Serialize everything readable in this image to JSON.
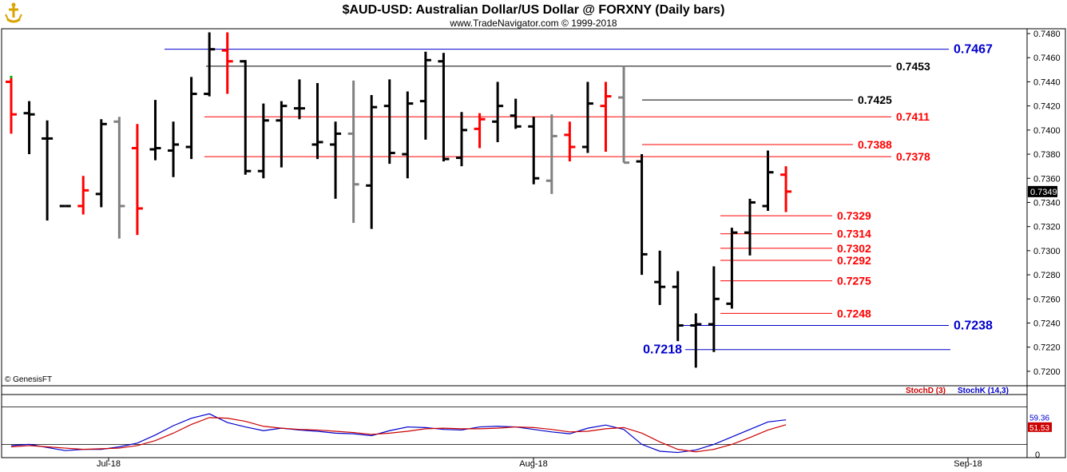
{
  "header": {
    "title": "$AUD-USD:  Australian Dollar/US Dollar @ FORXNY  (Daily bars)",
    "subtitle": "www.TradeNavigator.com © 1999-2018",
    "copyright": "© GenesisFT"
  },
  "chart_data": [
    {
      "type": "ohlc",
      "y_axis": {
        "ylim": [
          0.7188,
          0.7484
        ],
        "ticks": [
          0.72,
          0.722,
          0.724,
          0.726,
          0.728,
          0.73,
          0.732,
          0.734,
          0.736,
          0.738,
          0.74,
          0.742,
          0.744,
          0.746,
          0.748
        ],
        "tick_labels": [
          "0.7200",
          "0.7220",
          "0.7240",
          "0.7260",
          "0.7280",
          "0.7300",
          "0.7320",
          "0.7340",
          "0.7360",
          "0.7380",
          "0.7400",
          "0.7420",
          "0.7440",
          "0.7460",
          "0.7480"
        ],
        "position": "right",
        "last_price_label": "0.7349"
      },
      "x_axis": {
        "ticks": [
          {
            "i": 5.5,
            "label": "Jul-18"
          },
          {
            "i": 27.5,
            "label": "Aug-18"
          },
          {
            "i": 50,
            "label": "Sep-18"
          }
        ],
        "n_slots": 54
      },
      "colors": {
        "up": "#000000",
        "down": "#ff0000",
        "neutral": "#808080"
      },
      "bars": [
        {
          "i": 0,
          "h": 0.7443,
          "l": 0.7397,
          "o": 0.744,
          "c": 0.7413,
          "color": "red",
          "dot": "#00aa00"
        },
        {
          "i": 1,
          "h": 0.7424,
          "l": 0.738,
          "o": 0.7414,
          "c": 0.7413,
          "color": "black"
        },
        {
          "i": 2,
          "h": 0.7408,
          "l": 0.7325,
          "o": 0.7393,
          "c": 0.7393,
          "color": "black"
        },
        {
          "i": 3,
          "h": 0.7337,
          "l": 0.7337,
          "o": 0.7337,
          "c": 0.7337,
          "color": "black"
        },
        {
          "i": 4,
          "h": 0.7362,
          "l": 0.733,
          "o": 0.7337,
          "c": 0.735,
          "color": "red"
        },
        {
          "i": 5,
          "h": 0.7409,
          "l": 0.7336,
          "o": 0.7347,
          "c": 0.7405,
          "color": "black"
        },
        {
          "i": 6,
          "h": 0.7411,
          "l": 0.731,
          "o": 0.7407,
          "c": 0.7337,
          "color": "gray"
        },
        {
          "i": 7,
          "h": 0.7405,
          "l": 0.7313,
          "o": 0.7385,
          "c": 0.7335,
          "color": "red"
        },
        {
          "i": 8,
          "h": 0.7425,
          "l": 0.7375,
          "o": 0.7384,
          "c": 0.7385,
          "color": "black"
        },
        {
          "i": 9,
          "h": 0.7407,
          "l": 0.7361,
          "o": 0.7383,
          "c": 0.7388,
          "color": "black"
        },
        {
          "i": 10,
          "h": 0.7444,
          "l": 0.7376,
          "o": 0.7386,
          "c": 0.743,
          "color": "black"
        },
        {
          "i": 11,
          "h": 0.7481,
          "l": 0.7428,
          "o": 0.743,
          "c": 0.7467,
          "color": "black"
        },
        {
          "i": 12,
          "h": 0.7481,
          "l": 0.743,
          "o": 0.7466,
          "c": 0.7457,
          "color": "red"
        },
        {
          "i": 13,
          "h": 0.7458,
          "l": 0.7363,
          "o": 0.7457,
          "c": 0.7366,
          "color": "black"
        },
        {
          "i": 14,
          "h": 0.7422,
          "l": 0.736,
          "o": 0.7366,
          "c": 0.7408,
          "color": "black"
        },
        {
          "i": 15,
          "h": 0.7424,
          "l": 0.7369,
          "o": 0.7408,
          "c": 0.742,
          "color": "black"
        },
        {
          "i": 16,
          "h": 0.7442,
          "l": 0.7409,
          "o": 0.7418,
          "c": 0.7418,
          "color": "black"
        },
        {
          "i": 17,
          "h": 0.7439,
          "l": 0.7376,
          "o": 0.7388,
          "c": 0.739,
          "color": "black"
        },
        {
          "i": 18,
          "h": 0.7407,
          "l": 0.7343,
          "o": 0.7388,
          "c": 0.7397,
          "color": "black"
        },
        {
          "i": 19,
          "h": 0.7441,
          "l": 0.7323,
          "o": 0.7397,
          "c": 0.7355,
          "color": "gray"
        },
        {
          "i": 20,
          "h": 0.7429,
          "l": 0.7318,
          "o": 0.7354,
          "c": 0.7419,
          "color": "black"
        },
        {
          "i": 21,
          "h": 0.7442,
          "l": 0.7372,
          "o": 0.742,
          "c": 0.7381,
          "color": "black"
        },
        {
          "i": 22,
          "h": 0.7432,
          "l": 0.736,
          "o": 0.738,
          "c": 0.7422,
          "color": "black"
        },
        {
          "i": 23,
          "h": 0.7465,
          "l": 0.7392,
          "o": 0.7424,
          "c": 0.7458,
          "color": "black"
        },
        {
          "i": 24,
          "h": 0.7464,
          "l": 0.7374,
          "o": 0.7457,
          "c": 0.7376,
          "color": "black"
        },
        {
          "i": 25,
          "h": 0.7415,
          "l": 0.737,
          "o": 0.7377,
          "c": 0.74,
          "color": "black"
        },
        {
          "i": 26,
          "h": 0.7414,
          "l": 0.7385,
          "o": 0.7401,
          "c": 0.7409,
          "color": "red"
        },
        {
          "i": 27,
          "h": 0.744,
          "l": 0.739,
          "o": 0.7407,
          "c": 0.742,
          "color": "black"
        },
        {
          "i": 28,
          "h": 0.7426,
          "l": 0.7401,
          "o": 0.7412,
          "c": 0.7403,
          "color": "black"
        },
        {
          "i": 29,
          "h": 0.7411,
          "l": 0.7355,
          "o": 0.7403,
          "c": 0.736,
          "color": "black"
        },
        {
          "i": 30,
          "h": 0.7413,
          "l": 0.7347,
          "o": 0.7358,
          "c": 0.7395,
          "color": "gray"
        },
        {
          "i": 31,
          "h": 0.7407,
          "l": 0.7374,
          "o": 0.7396,
          "c": 0.7386,
          "color": "red"
        },
        {
          "i": 32,
          "h": 0.744,
          "l": 0.7381,
          "o": 0.7386,
          "c": 0.7422,
          "color": "black"
        },
        {
          "i": 33,
          "h": 0.744,
          "l": 0.7382,
          "o": 0.742,
          "c": 0.7428,
          "color": "red"
        },
        {
          "i": 34,
          "h": 0.7453,
          "l": 0.7373,
          "o": 0.7427,
          "c": 0.7373,
          "color": "gray"
        },
        {
          "i": 35,
          "h": 0.738,
          "l": 0.728,
          "o": 0.7374,
          "c": 0.7297,
          "color": "black"
        },
        {
          "i": 36,
          "h": 0.73,
          "l": 0.7255,
          "o": 0.7274,
          "c": 0.727,
          "color": "black"
        },
        {
          "i": 37,
          "h": 0.7283,
          "l": 0.7225,
          "o": 0.727,
          "c": 0.7238,
          "color": "black"
        },
        {
          "i": 38,
          "h": 0.7248,
          "l": 0.7203,
          "o": 0.7238,
          "c": 0.7239,
          "color": "black"
        },
        {
          "i": 39,
          "h": 0.7287,
          "l": 0.7216,
          "o": 0.7239,
          "c": 0.726,
          "color": "black"
        },
        {
          "i": 40,
          "h": 0.7319,
          "l": 0.7252,
          "o": 0.7256,
          "c": 0.7315,
          "color": "black"
        },
        {
          "i": 41,
          "h": 0.7343,
          "l": 0.7296,
          "o": 0.7315,
          "c": 0.734,
          "color": "black"
        },
        {
          "i": 42,
          "h": 0.7383,
          "l": 0.7333,
          "o": 0.7337,
          "c": 0.7365,
          "color": "black"
        },
        {
          "i": 43,
          "h": 0.737,
          "l": 0.7332,
          "o": 0.7363,
          "c": 0.7349,
          "color": "red"
        }
      ],
      "levels": [
        {
          "value": 0.7467,
          "label": "0.7467",
          "color": "#0000cc",
          "from": 7,
          "to": 44.7,
          "label_side": "right",
          "big": true
        },
        {
          "value": 0.7453,
          "label": "0.7453",
          "color": "#000000",
          "from": 11,
          "to": 41.8,
          "label_side": "right"
        },
        {
          "value": 0.7425,
          "label": "0.7425",
          "color": "#000000",
          "from": 34,
          "to": 39.8,
          "label_side": "right"
        },
        {
          "value": 0.7411,
          "label": "0.7411",
          "color": "#ff0000",
          "from": 9,
          "to": 41.8,
          "label_side": "right"
        },
        {
          "value": 0.7388,
          "label": "0.7388",
          "color": "#ff0000",
          "from": 34,
          "to": 39.8,
          "label_side": "right"
        },
        {
          "value": 0.7378,
          "label": "0.7378",
          "color": "#ff0000",
          "from": 9,
          "to": 41.8,
          "label_side": "right"
        },
        {
          "value": 0.7329,
          "label": "0.7329",
          "color": "#ff0000",
          "from": 38,
          "to": 38.4,
          "label_side": "right"
        },
        {
          "value": 0.7314,
          "label": "0.7314",
          "color": "#ff0000",
          "from": 38,
          "to": 38.4,
          "label_side": "right"
        },
        {
          "value": 0.7302,
          "label": "0.7302",
          "color": "#ff0000",
          "from": 38,
          "to": 38.4,
          "label_side": "right"
        },
        {
          "value": 0.7292,
          "label": "0.7292",
          "color": "#ff0000",
          "from": 38,
          "to": 38.4,
          "label_side": "right"
        },
        {
          "value": 0.7275,
          "label": "0.7275",
          "color": "#ff0000",
          "from": 38,
          "to": 38.4,
          "label_side": "right"
        },
        {
          "value": 0.7248,
          "label": "0.7248",
          "color": "#ff0000",
          "from": 38,
          "to": 38.4,
          "label_side": "right"
        },
        {
          "value": 0.7238,
          "label": "0.7238",
          "color": "#0000cc",
          "from": 36,
          "to": 44.7,
          "label_side": "right",
          "big": true
        },
        {
          "value": 0.7218,
          "label": "0.7218",
          "color": "#0000cc",
          "from": 36,
          "to": 44.7,
          "label_side": "left",
          "big": true
        }
      ]
    },
    {
      "type": "line",
      "name": "stochastic",
      "ylim": [
        0,
        100
      ],
      "y_tick_label": "0",
      "reference_lines": [
        20,
        80
      ],
      "legend": [
        {
          "label": "StochD (3)",
          "color": "#cc0000"
        },
        {
          "label": "StochK (14,3)",
          "color": "#0000cc"
        }
      ],
      "value_labels": [
        {
          "label": "59.36",
          "color": "#0000cc",
          "value": 59.36
        },
        {
          "label": "51.53",
          "color": "#cc0000",
          "value": 51.53
        }
      ],
      "series": [
        {
          "name": "StochK (14,3)",
          "color": "#0000cc",
          "values": [
            18,
            20,
            15,
            10,
            12,
            12,
            16,
            22,
            35,
            50,
            62,
            69,
            55,
            48,
            42,
            46,
            43,
            41,
            38,
            37,
            34,
            42,
            48,
            47,
            44,
            43,
            48,
            49,
            48,
            44,
            40,
            37,
            46,
            51,
            44,
            20,
            9,
            7,
            11,
            20,
            32,
            44,
            56,
            59.36
          ]
        },
        {
          "name": "StochD (3)",
          "color": "#cc0000",
          "values": [
            16,
            18,
            16,
            14,
            12,
            13,
            14,
            18,
            26,
            38,
            52,
            63,
            62,
            57,
            49,
            46,
            44,
            43,
            41,
            39,
            36,
            38,
            41,
            45,
            46,
            45,
            45,
            46,
            48,
            47,
            44,
            40,
            41,
            45,
            47,
            38,
            24,
            12,
            8,
            12,
            20,
            31,
            43,
            51.53
          ]
        }
      ]
    }
  ]
}
